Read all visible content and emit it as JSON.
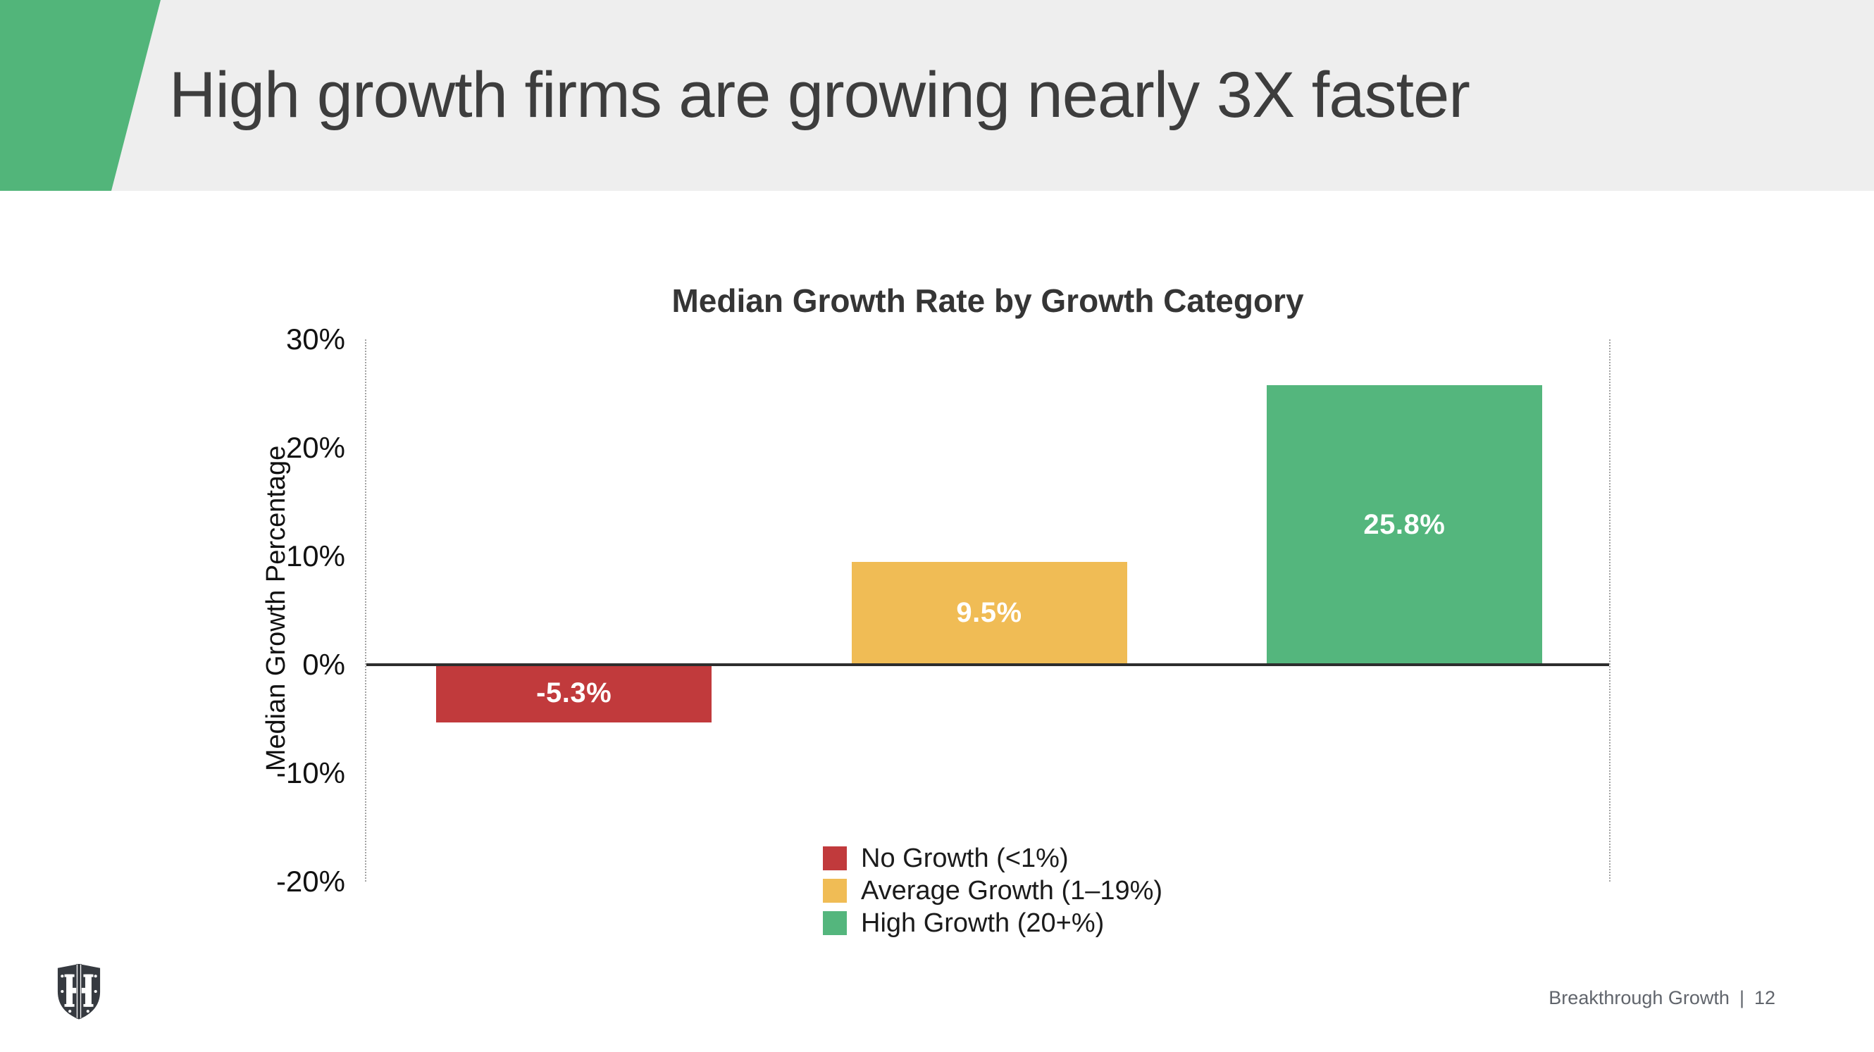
{
  "slide": {
    "title": "High growth firms are growing nearly 3X faster",
    "logo_icon": "shield-crest-logo",
    "footer": {
      "label": "Breakthrough Growth",
      "separator": "|",
      "page_number": "12"
    }
  },
  "colors": {
    "header_band": "#eeeeee",
    "accent_green": "#52b57a",
    "axis_line": "#2d2d2d",
    "frame_dotted": "#a3a3a3",
    "logo_dark": "#363a40",
    "bar_label_text": "#ffffff"
  },
  "chart_data": {
    "type": "bar",
    "title": "Median Growth Rate by Growth Category",
    "xlabel": "",
    "ylabel": "Median Growth Percentage",
    "categories": [
      "No Growth (<1%)",
      "Average Growth (1–19%)",
      "High Growth (20+%)"
    ],
    "values": [
      -5.3,
      9.5,
      25.8
    ],
    "bar_labels": [
      "-5.3%",
      "9.5%",
      "25.8%"
    ],
    "bar_colors": [
      "#c13a3c",
      "#f0bc55",
      "#54b67d"
    ],
    "bar_names": [
      "bar-no-growth",
      "bar-average-growth",
      "bar-high-growth"
    ],
    "ylim": [
      -20,
      30
    ],
    "yticks": [
      30,
      20,
      10,
      0,
      -10,
      -20
    ],
    "ytick_labels": [
      "30%",
      "20%",
      "10%",
      "0%",
      "-10%",
      "-20%"
    ],
    "grid": "off",
    "legend_position": "bottom-center",
    "legend": {
      "entries": [
        {
          "label": "No Growth (<1%)",
          "color": "#c13a3c"
        },
        {
          "label": "Average Growth (1–19%)",
          "color": "#f0bc55"
        },
        {
          "label": "High Growth (20+%)",
          "color": "#54b67d"
        }
      ]
    }
  }
}
